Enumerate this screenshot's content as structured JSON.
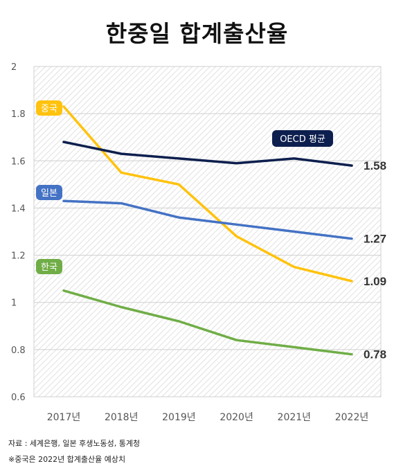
{
  "chart_data": {
    "type": "line",
    "title": "한중일 합계출산율",
    "categories": [
      "2017년",
      "2018년",
      "2019년",
      "2020년",
      "2021년",
      "2022년"
    ],
    "ylim": [
      0.6,
      2
    ],
    "yticks": [
      0.6,
      0.8,
      1,
      1.2,
      1.4,
      1.6,
      1.8,
      2
    ],
    "ytick_labels": [
      "0.6",
      "0.8",
      "1",
      "1.2",
      "1.4",
      "1.6",
      "1.8",
      "2"
    ],
    "grid": true,
    "series": [
      {
        "name": "중국",
        "color": "#FFC20E",
        "values": [
          1.83,
          1.55,
          1.5,
          1.28,
          1.15,
          1.09
        ],
        "end_label": "1.09",
        "label_text_color": "#111111"
      },
      {
        "name": "OECD 평균",
        "color": "#0D1F4E",
        "values": [
          1.68,
          1.63,
          1.61,
          1.59,
          1.61,
          1.58
        ],
        "end_label": "1.58",
        "label_text_color": "#FFFFFF"
      },
      {
        "name": "일본",
        "color": "#4472C4",
        "values": [
          1.43,
          1.42,
          1.36,
          1.33,
          1.3,
          1.27
        ],
        "end_label": "1.27",
        "label_text_color": "#FFFFFF"
      },
      {
        "name": "한국",
        "color": "#70AD47",
        "values": [
          1.05,
          0.98,
          0.92,
          0.84,
          0.81,
          0.78
        ],
        "end_label": "0.78",
        "label_text_color": "#FFFFFF"
      }
    ]
  },
  "notes": {
    "source": "자료 : 세계은행, 일본 후생노동성, 통계청",
    "estimate": "※중국은 2022년 합계출산율 예상치"
  }
}
